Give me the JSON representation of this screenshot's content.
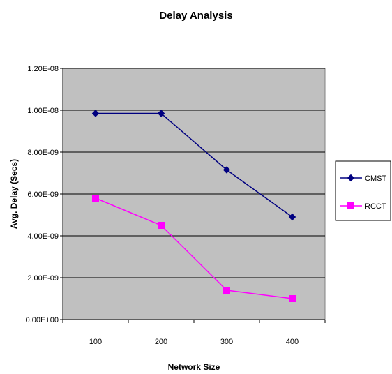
{
  "chart_data": {
    "type": "line",
    "title": "Delay Analysis",
    "xlabel": "Network Size",
    "ylabel": "Avg. Delay (Secs)",
    "categories": [
      "100",
      "200",
      "300",
      "400"
    ],
    "x": [
      100,
      200,
      300,
      400
    ],
    "ylim": [
      0,
      1.2e-08
    ],
    "yticks": [
      0,
      2e-09,
      4e-09,
      6e-09,
      8e-09,
      1e-08,
      1.2e-08
    ],
    "ytick_labels": [
      "0.00E+00",
      "2.00E-09",
      "4.00E-09",
      "6.00E-09",
      "8.00E-09",
      "1.00E-08",
      "1.20E-08"
    ],
    "grid": "horizontal",
    "legend_position": "right",
    "plot_background": "#c0c0c0",
    "series": [
      {
        "name": "CMST",
        "values": [
          9.85e-09,
          9.85e-09,
          7.15e-09,
          4.9e-09
        ],
        "color": "#000080",
        "marker": "diamond"
      },
      {
        "name": "RCCT",
        "values": [
          5.8e-09,
          4.5e-09,
          1.4e-09,
          1e-09
        ],
        "color": "#ff00ff",
        "marker": "square"
      }
    ]
  }
}
